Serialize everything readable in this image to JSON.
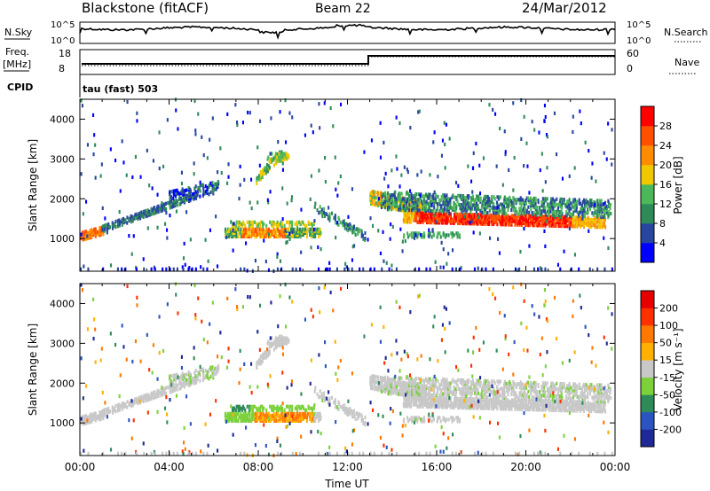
{
  "header": {
    "station": "Blackstone (fitACF)",
    "beam": "Beam 22",
    "date": "24/Mar/2012"
  },
  "params_panel": {
    "nsky_label": "N.Sky",
    "nsearch_label": "N.Search",
    "noise_ticks": [
      "10^5",
      "10^0"
    ],
    "freq_label": "Freq.",
    "freq_unit": "[MHz]",
    "freq_ticks": [
      "18",
      "8"
    ],
    "nave_label": "Nave",
    "nave_ticks": [
      "60",
      "0"
    ],
    "cpid_label": "CPID",
    "cpid_value": "tau (fast) 503"
  },
  "colors": {
    "power": [
      "#0000ff",
      "#2846a0",
      "#2e8b57",
      "#4db85a",
      "#f0c800",
      "#ff8c00",
      "#ff5000",
      "#ff0000"
    ],
    "velocity": [
      "#1e2896",
      "#2a55c0",
      "#2e8b57",
      "#7cd13a",
      "#c8c8c8",
      "#ffb000",
      "#ff7800",
      "#ff3000",
      "#e60000"
    ]
  },
  "chart_data": [
    {
      "type": "heatmap",
      "name": "power",
      "xlabel": "Time UT",
      "ylabel": "Slant Range [km]",
      "x_ticks": [
        "00:00",
        "04:00",
        "08:00",
        "12:00",
        "16:00",
        "20:00",
        "00:00"
      ],
      "y_ticks": [
        "1000",
        "2000",
        "3000",
        "4000"
      ],
      "xlim": [
        0,
        24
      ],
      "ylim": [
        180,
        4500
      ],
      "colorbar": {
        "label": "Power [dB]",
        "ticks": [
          "28",
          "24",
          "20",
          "16",
          "12",
          "8",
          "4"
        ]
      }
    },
    {
      "type": "heatmap",
      "name": "velocity",
      "xlabel": "Time UT",
      "ylabel": "Slant Range [km]",
      "x_ticks": [
        "00:00",
        "04:00",
        "08:00",
        "12:00",
        "16:00",
        "20:00",
        "00:00"
      ],
      "y_ticks": [
        "1000",
        "2000",
        "3000",
        "4000"
      ],
      "xlim": [
        0,
        24
      ],
      "ylim": [
        180,
        4500
      ],
      "colorbar": {
        "label": "Velocity [m s⁻¹]",
        "ticks": [
          "200",
          "100",
          "50",
          "15",
          "-15",
          "-50",
          "-100",
          "-200"
        ]
      }
    }
  ]
}
